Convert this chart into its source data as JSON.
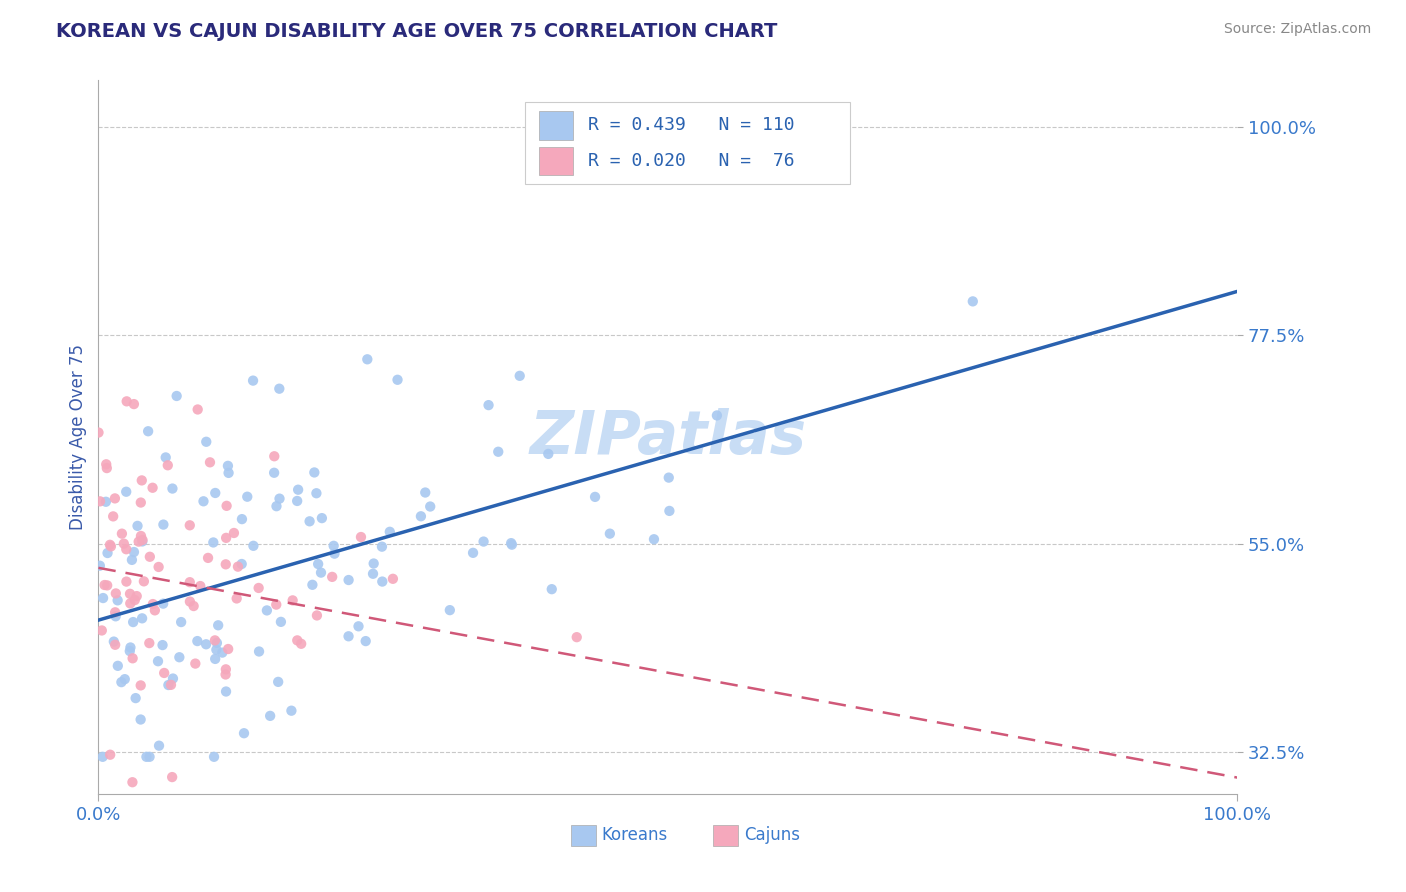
{
  "title": "KOREAN VS CAJUN DISABILITY AGE OVER 75 CORRELATION CHART",
  "source": "Source: ZipAtlas.com",
  "ylabel": "Disability Age Over 75",
  "xlim": [
    0.0,
    1.0
  ],
  "ylim": [
    0.28,
    1.05
  ],
  "yticks": [
    0.325,
    0.55,
    0.775,
    1.0
  ],
  "ytick_labels": [
    "32.5%",
    "55.0%",
    "77.5%",
    "100.0%"
  ],
  "xtick_vals": [
    0.0,
    1.0
  ],
  "xtick_labels": [
    "0.0%",
    "100.0%"
  ],
  "korean_R": 0.439,
  "korean_N": 110,
  "cajun_R": 0.02,
  "cajun_N": 76,
  "korean_color": "#a8c8f0",
  "cajun_color": "#f5a8bc",
  "korean_line_color": "#2a62b0",
  "cajun_line_color": "#d05878",
  "title_color": "#2a2a7a",
  "axis_label_color": "#3a5aaa",
  "tick_label_color": "#3a7acc",
  "watermark": "ZIPatlas",
  "watermark_color": "#c8ddf5",
  "background_color": "#ffffff",
  "grid_color": "#c8c8c8",
  "legend_text_color": "#2a62b0",
  "legend_border_color": "#cccccc",
  "source_color": "#888888"
}
